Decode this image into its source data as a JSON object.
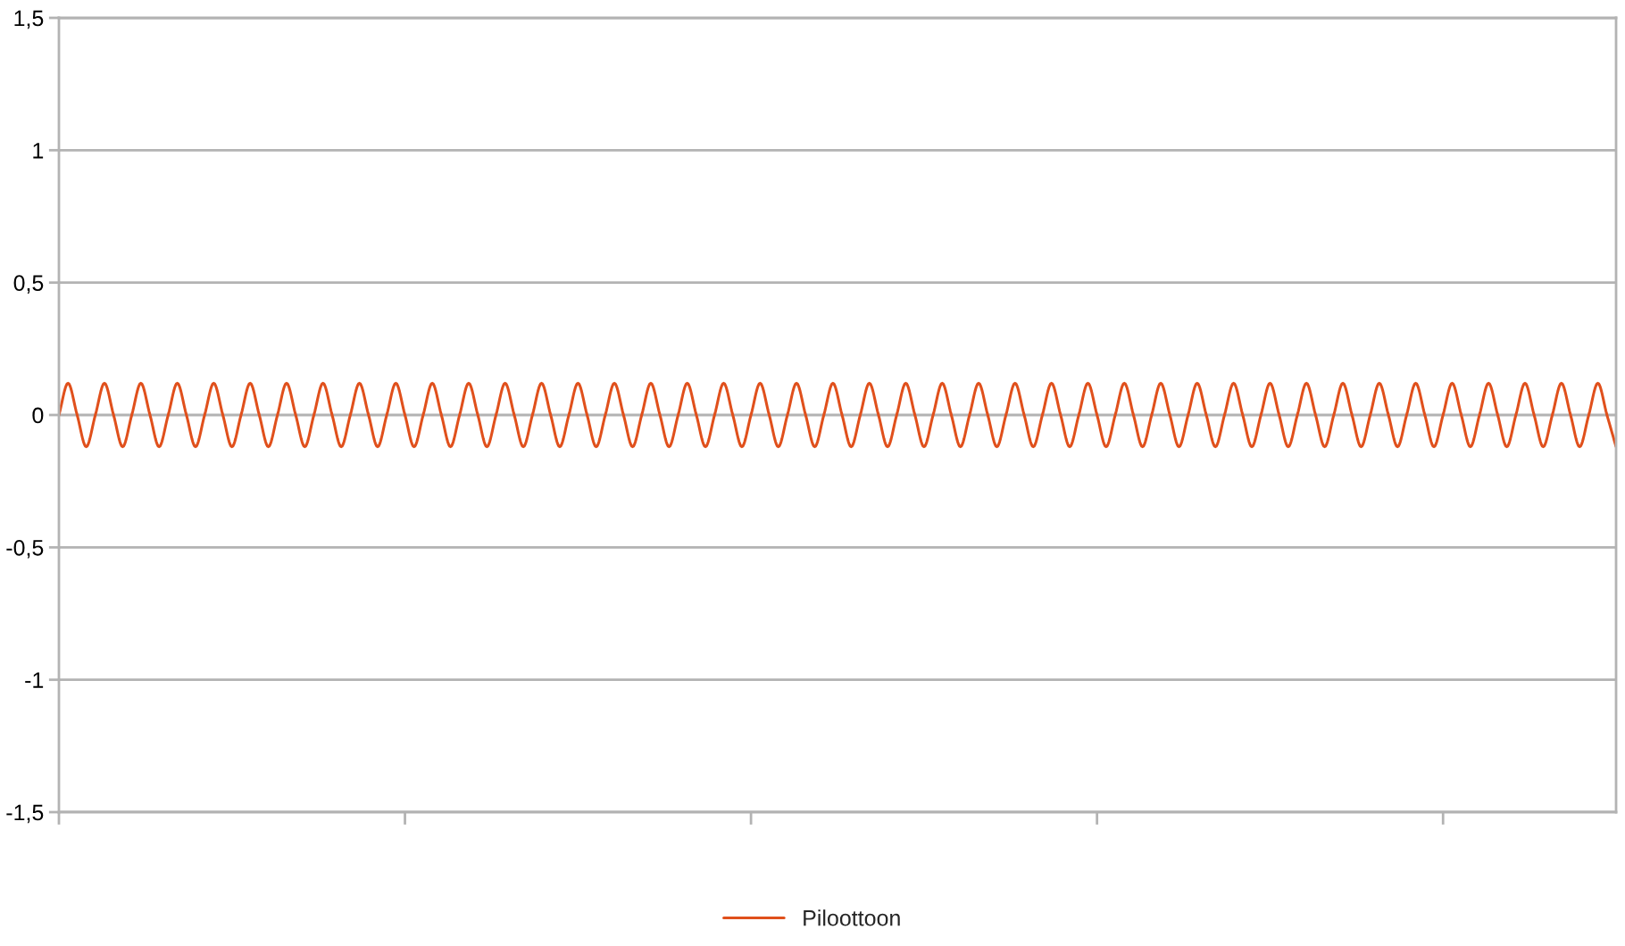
{
  "chart_data": {
    "type": "line",
    "categories": [
      null,
      null,
      null,
      null,
      null,
      null,
      null,
      null,
      null,
      null,
      null,
      null,
      null,
      null,
      null,
      null,
      null,
      null,
      null,
      null,
      null,
      null,
      null,
      null,
      null,
      null,
      null,
      null,
      null,
      null,
      null,
      null,
      null,
      null,
      null,
      null,
      null,
      null,
      null,
      null,
      null,
      null,
      null,
      null,
      null,
      null,
      null,
      null,
      null,
      null,
      null,
      null,
      null,
      null,
      null,
      null,
      null,
      null,
      null,
      null,
      null,
      null,
      null,
      null,
      null,
      null,
      null,
      null,
      null,
      null,
      null,
      null,
      null,
      null,
      null,
      null,
      null,
      null,
      null,
      null,
      null,
      null,
      null,
      null,
      null,
      null,
      null,
      null,
      null,
      null,
      null,
      null,
      null,
      null,
      null,
      null,
      null,
      null,
      null,
      null,
      null,
      null,
      null,
      null,
      null,
      null,
      null,
      null,
      null,
      null,
      null,
      null,
      null,
      null,
      null,
      null,
      null,
      null,
      null,
      null,
      null,
      null,
      null,
      null,
      null,
      null,
      null,
      null,
      null,
      null,
      null,
      null,
      null,
      null,
      null,
      null,
      null,
      null,
      null,
      null,
      null,
      null,
      null,
      null,
      null,
      null,
      null,
      null,
      null,
      null,
      null,
      null,
      null,
      null,
      null,
      null,
      null,
      null,
      null,
      null,
      null,
      null,
      null,
      null,
      null,
      null,
      null,
      null,
      null,
      null,
      null,
      null
    ],
    "series": [
      {
        "name": "Piloottoon",
        "color": "#e0501c",
        "values": [
          0,
          0.12,
          0,
          -0.12,
          0,
          0.12,
          0,
          -0.12,
          0,
          0.12,
          0,
          -0.12,
          0,
          0.12,
          0,
          -0.12,
          0,
          0.12,
          0,
          -0.12,
          0,
          0.12,
          0,
          -0.12,
          0,
          0.12,
          0,
          -0.12,
          0,
          0.12,
          0,
          -0.12,
          0,
          0.12,
          0,
          -0.12,
          0,
          0.12,
          0,
          -0.12,
          0,
          0.12,
          0,
          -0.12,
          0,
          0.12,
          0,
          -0.12,
          0,
          0.12,
          0,
          -0.12,
          0,
          0.12,
          0,
          -0.12,
          0,
          0.12,
          0,
          -0.12,
          0,
          0.12,
          0,
          -0.12,
          0,
          0.12,
          0,
          -0.12,
          0,
          0.12,
          0,
          -0.12,
          0,
          0.12,
          0,
          -0.12,
          0,
          0.12,
          0,
          -0.12,
          0,
          0.12,
          0,
          -0.12,
          0,
          0.12,
          0,
          -0.12,
          0,
          0.12,
          0,
          -0.12,
          0,
          0.12,
          0,
          -0.12,
          0,
          0.12,
          0,
          -0.12,
          0,
          0.12,
          0,
          -0.12,
          0,
          0.12,
          0,
          -0.12,
          0,
          0.12,
          0,
          -0.12,
          0,
          0.12,
          0,
          -0.12,
          0,
          0.12,
          0,
          -0.12,
          0,
          0.12,
          0,
          -0.12,
          0,
          0.12,
          0,
          -0.12,
          0,
          0.12,
          0,
          -0.12,
          0,
          0.12,
          0,
          -0.12,
          0,
          0.12,
          0,
          -0.12,
          0,
          0.12,
          0,
          -0.12,
          0,
          0.12,
          0,
          -0.12,
          0,
          0.12,
          0,
          -0.12,
          0,
          0.12,
          0,
          -0.12,
          0,
          0.12,
          0,
          -0.12,
          0,
          0.12,
          0,
          -0.12,
          0,
          0.12,
          0,
          -0.12,
          0,
          0.12,
          0,
          -0.12
        ]
      }
    ],
    "ylim": [
      -1.5,
      1.5
    ],
    "yticks": [
      {
        "value": 1.5,
        "label": "1,5"
      },
      1,
      {
        "value": 0.5,
        "label": "0,5"
      },
      0,
      {
        "value": -0.5,
        "label": "-0,5"
      },
      -1,
      {
        "value": -1.5,
        "label": "-1,5"
      }
    ],
    "grid": "y",
    "legend": "bottom",
    "tick_labels": "y"
  }
}
